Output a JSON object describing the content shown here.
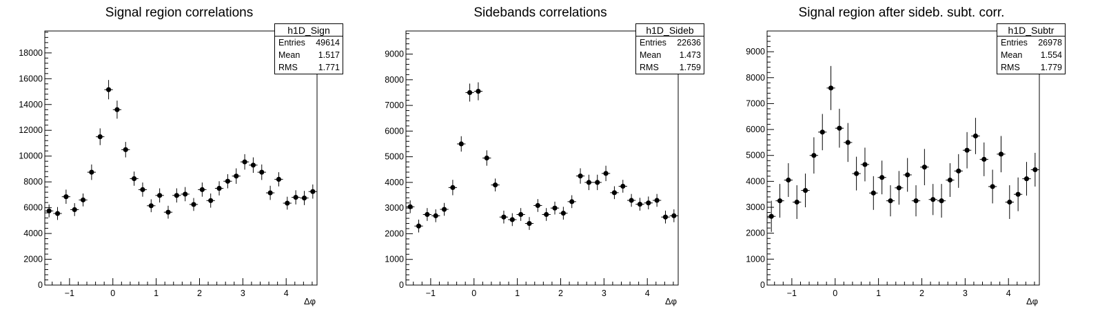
{
  "chart_data": [
    {
      "type": "scatter",
      "title": "Signal region correlations",
      "xlabel": "Δφ",
      "xlim": [
        -1.5708,
        4.7124
      ],
      "ylim": [
        0,
        19700
      ],
      "yticks": [
        0,
        2000,
        4000,
        6000,
        8000,
        10000,
        12000,
        14000,
        16000,
        18000
      ],
      "xticks": [
        -1,
        0,
        1,
        2,
        3,
        4
      ],
      "stats": {
        "name": "h1D_Sign",
        "entries": "49614",
        "mean": "1.517",
        "rms": "1.771"
      },
      "stat_labels": {
        "entries": "Entries",
        "mean": "Mean",
        "rms": "RMS"
      },
      "series": [
        {
          "x": [
            -1.4726,
            -1.2763,
            -1.0799,
            -0.8836,
            -0.6872,
            -0.4909,
            -0.2945,
            -0.0982,
            0.0982,
            0.2945,
            0.4909,
            0.6872,
            0.8836,
            1.0799,
            1.2763,
            1.4726,
            1.669,
            1.8653,
            2.0617,
            2.258,
            2.4544,
            2.6507,
            2.8471,
            3.0434,
            3.2398,
            3.4361,
            3.6325,
            3.8288,
            4.0252,
            4.2215,
            4.4179,
            4.6142
          ],
          "y": [
            5750,
            5550,
            6850,
            5850,
            6600,
            8750,
            11500,
            15150,
            13600,
            10500,
            8250,
            7400,
            6150,
            6950,
            5650,
            6950,
            7050,
            6250,
            7400,
            6550,
            7500,
            8050,
            8450,
            9550,
            9300,
            8750,
            7150,
            8200,
            6350,
            6800,
            6750,
            7250
          ],
          "err": [
            500,
            500,
            550,
            500,
            500,
            600,
            650,
            750,
            700,
            600,
            550,
            550,
            500,
            550,
            500,
            550,
            550,
            500,
            550,
            550,
            550,
            550,
            600,
            600,
            600,
            600,
            550,
            550,
            500,
            550,
            550,
            550
          ]
        }
      ]
    },
    {
      "type": "scatter",
      "title": "Sidebands correlations",
      "xlabel": "Δφ",
      "xlim": [
        -1.5708,
        4.7124
      ],
      "ylim": [
        0,
        9900
      ],
      "yticks": [
        0,
        1000,
        2000,
        3000,
        4000,
        5000,
        6000,
        7000,
        8000,
        9000
      ],
      "xticks": [
        -1,
        0,
        1,
        2,
        3,
        4
      ],
      "stats": {
        "name": "h1D_Sideb",
        "entries": "22636",
        "mean": "1.473",
        "rms": "1.759"
      },
      "stat_labels": {
        "entries": "Entries",
        "mean": "Mean",
        "rms": "RMS"
      },
      "series": [
        {
          "x": [
            -1.4726,
            -1.2763,
            -1.0799,
            -0.8836,
            -0.6872,
            -0.4909,
            -0.2945,
            -0.0982,
            0.0982,
            0.2945,
            0.4909,
            0.6872,
            0.8836,
            1.0799,
            1.2763,
            1.4726,
            1.669,
            1.8653,
            2.0617,
            2.258,
            2.4544,
            2.6507,
            2.8471,
            3.0434,
            3.2398,
            3.4361,
            3.6325,
            3.8288,
            4.0252,
            4.2215,
            4.4179,
            4.6142
          ],
          "y": [
            3050,
            2300,
            2750,
            2700,
            2950,
            3800,
            5500,
            7500,
            7550,
            4950,
            3900,
            2650,
            2550,
            2750,
            2400,
            3100,
            2750,
            3000,
            2800,
            3250,
            4250,
            4000,
            4000,
            4350,
            3600,
            3850,
            3300,
            3150,
            3200,
            3300,
            2650,
            2700
          ],
          "err": [
            250,
            250,
            250,
            250,
            250,
            300,
            300,
            350,
            350,
            300,
            250,
            250,
            250,
            250,
            250,
            250,
            250,
            250,
            250,
            250,
            300,
            300,
            300,
            300,
            250,
            250,
            250,
            250,
            250,
            250,
            250,
            250
          ]
        }
      ]
    },
    {
      "type": "scatter",
      "title": "Signal region after sideb. subt. corr.",
      "xlabel": "Δφ",
      "xlim": [
        -1.5708,
        4.7124
      ],
      "ylim": [
        0,
        9800
      ],
      "yticks": [
        0,
        1000,
        2000,
        3000,
        4000,
        5000,
        6000,
        7000,
        8000,
        9000
      ],
      "xticks": [
        -1,
        0,
        1,
        2,
        3,
        4
      ],
      "stats": {
        "name": "h1D_Subtr",
        "entries": "26978",
        "mean": "1.554",
        "rms": "1.779"
      },
      "stat_labels": {
        "entries": "Entries",
        "mean": "Mean",
        "rms": "RMS"
      },
      "series": [
        {
          "x": [
            -1.4726,
            -1.2763,
            -1.0799,
            -0.8836,
            -0.6872,
            -0.4909,
            -0.2945,
            -0.0982,
            0.0982,
            0.2945,
            0.4909,
            0.6872,
            0.8836,
            1.0799,
            1.2763,
            1.4726,
            1.669,
            1.8653,
            2.0617,
            2.258,
            2.4544,
            2.6507,
            2.8471,
            3.0434,
            3.2398,
            3.4361,
            3.6325,
            3.8288,
            4.0252,
            4.2215,
            4.4179,
            4.6142
          ],
          "y": [
            2650,
            3250,
            4050,
            3200,
            3650,
            5000,
            5900,
            7600,
            6050,
            5500,
            4300,
            4650,
            3550,
            4150,
            3250,
            3750,
            4250,
            3250,
            4550,
            3300,
            3250,
            4050,
            4400,
            5200,
            5750,
            4850,
            3800,
            5050,
            3200,
            3500,
            4100,
            4450
          ],
          "err": [
            600,
            650,
            650,
            650,
            650,
            700,
            700,
            850,
            750,
            750,
            650,
            650,
            650,
            650,
            600,
            650,
            650,
            600,
            700,
            600,
            650,
            650,
            650,
            700,
            700,
            650,
            650,
            700,
            650,
            650,
            650,
            650
          ]
        }
      ]
    }
  ]
}
